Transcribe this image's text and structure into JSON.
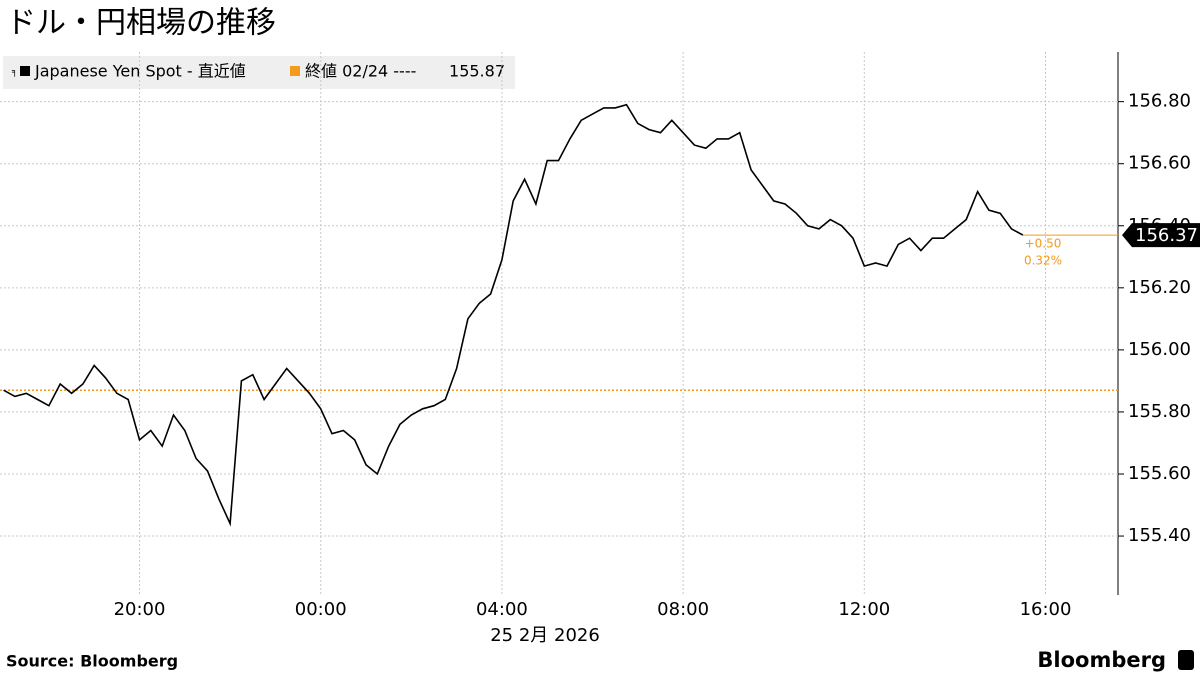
{
  "chart_data": {
    "type": "line",
    "title": "ドル・円相場の推移",
    "x_label": "25 2月 2026",
    "source": "Source:  Bloomberg",
    "brand": "Bloomberg",
    "series": [
      {
        "name": "Japanese Yen Spot - 直近値",
        "color": "#000000",
        "values": [
          155.87,
          155.85,
          155.86,
          155.84,
          155.82,
          155.89,
          155.86,
          155.89,
          155.95,
          155.91,
          155.86,
          155.84,
          155.71,
          155.74,
          155.69,
          155.79,
          155.74,
          155.65,
          155.61,
          155.52,
          155.44,
          155.9,
          155.92,
          155.84,
          155.89,
          155.94,
          155.9,
          155.86,
          155.81,
          155.73,
          155.74,
          155.71,
          155.63,
          155.6,
          155.69,
          155.76,
          155.79,
          155.81,
          155.82,
          155.84,
          155.94,
          156.1,
          156.15,
          156.18,
          156.29,
          156.48,
          156.55,
          156.47,
          156.61,
          156.61,
          156.68,
          156.74,
          156.76,
          156.78,
          156.78,
          156.79,
          156.73,
          156.71,
          156.7,
          156.74,
          156.7,
          156.66,
          156.65,
          156.68,
          156.68,
          156.7,
          156.58,
          156.53,
          156.48,
          156.47,
          156.44,
          156.4,
          156.39,
          156.42,
          156.4,
          156.36,
          156.27,
          156.28,
          156.27,
          156.34,
          156.36,
          156.32,
          156.36,
          156.36,
          156.39,
          156.42,
          156.51,
          156.45,
          156.44,
          156.39,
          156.37
        ]
      }
    ],
    "x": [
      -7,
      -6.75,
      -6.5,
      -6.25,
      -6,
      -5.75,
      -5.5,
      -5.25,
      -5,
      -4.75,
      -4.5,
      -4.25,
      -4,
      -3.75,
      -3.5,
      -3.25,
      -3,
      -2.75,
      -2.5,
      -2.25,
      -2,
      -1.75,
      -1.5,
      -1.25,
      -1,
      -0.75,
      -0.5,
      -0.25,
      0,
      0.25,
      0.5,
      0.75,
      1,
      1.25,
      1.5,
      1.75,
      2,
      2.25,
      2.5,
      2.75,
      3,
      3.25,
      3.5,
      3.75,
      4,
      4.25,
      4.5,
      4.75,
      5,
      5.25,
      5.5,
      5.75,
      6,
      6.25,
      6.5,
      6.75,
      7,
      7.25,
      7.5,
      7.75,
      8,
      8.25,
      8.5,
      8.75,
      9,
      9.25,
      9.5,
      9.75,
      10,
      10.25,
      10.5,
      10.75,
      11,
      11.25,
      11.5,
      11.75,
      12,
      12.25,
      12.5,
      12.75,
      13,
      13.25,
      13.5,
      13.75,
      14,
      14.25,
      14.5,
      14.75,
      15,
      15.25,
      15.5
    ],
    "reference": {
      "name": "終値 02/24 ----",
      "value": 155.87,
      "color": "#f29b1d"
    },
    "last_value": 156.37,
    "change_labels": [
      "+0.50",
      "0.32%"
    ],
    "xlim": [
      -7.08,
      17.6
    ],
    "xticks": [
      {
        "value": -4,
        "label": "20:00"
      },
      {
        "value": 0,
        "label": "00:00"
      },
      {
        "value": 4,
        "label": "04:00"
      },
      {
        "value": 8,
        "label": "08:00"
      },
      {
        "value": 12,
        "label": "12:00"
      },
      {
        "value": 16,
        "label": "16:00"
      }
    ],
    "ylim": [
      155.21,
      156.96
    ],
    "yticks": [
      {
        "value": 155.4,
        "label": "155.40"
      },
      {
        "value": 155.6,
        "label": "155.60"
      },
      {
        "value": 155.8,
        "label": "155.80"
      },
      {
        "value": 156.0,
        "label": "156.00"
      },
      {
        "value": 156.2,
        "label": "156.20"
      },
      {
        "value": 156.4,
        "label": "156.40"
      },
      {
        "value": 156.6,
        "label": "156.60"
      },
      {
        "value": 156.8,
        "label": "156.80"
      }
    ],
    "grid": true
  }
}
